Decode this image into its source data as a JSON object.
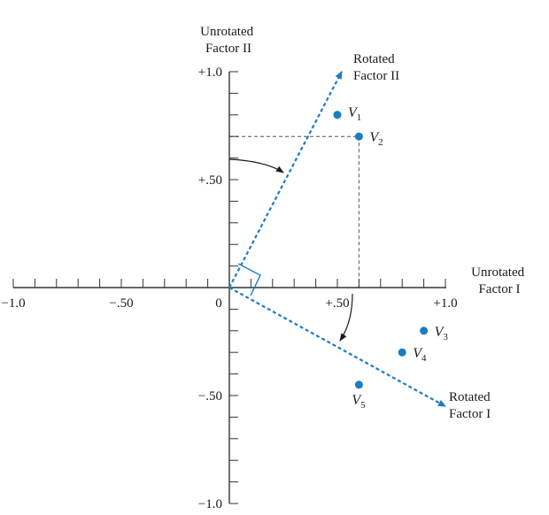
{
  "chart_data": {
    "type": "scatter",
    "xlim": [
      -1.0,
      1.0
    ],
    "ylim": [
      -1.0,
      1.0
    ],
    "x_tick_labels": [
      {
        "value": -1.0,
        "label": "−1.0"
      },
      {
        "value": -0.5,
        "label": "−.50"
      },
      {
        "value": 0,
        "label": "0"
      },
      {
        "value": 0.5,
        "label": "+.50"
      },
      {
        "value": 1.0,
        "label": "+1.0"
      }
    ],
    "y_tick_labels": [
      {
        "value": 1.0,
        "label": "+1.0"
      },
      {
        "value": 0.5,
        "label": "+.50"
      },
      {
        "value": -0.5,
        "label": "−.50"
      },
      {
        "value": -1.0,
        "label": "−1.0"
      }
    ],
    "minor_tick_step": 0.1,
    "unrotated_x_label": [
      "Unrotated",
      "Factor I"
    ],
    "unrotated_y_label": [
      "Unrotated",
      "Factor II"
    ],
    "rotated_factor_I": {
      "label": [
        "Rotated",
        "Factor I"
      ],
      "end": [
        1.0,
        -0.55
      ]
    },
    "rotated_factor_II": {
      "label": [
        "Rotated",
        "Factor II"
      ],
      "end": [
        0.52,
        1.0
      ]
    },
    "points": [
      {
        "letter": "V",
        "sub": "1",
        "x": 0.5,
        "y": 0.8
      },
      {
        "letter": "V",
        "sub": "2",
        "x": 0.6,
        "y": 0.7
      },
      {
        "letter": "V",
        "sub": "3",
        "x": 0.9,
        "y": -0.2
      },
      {
        "letter": "V",
        "sub": "4",
        "x": 0.8,
        "y": -0.3
      },
      {
        "letter": "V",
        "sub": "5",
        "x": 0.6,
        "y": -0.45
      }
    ],
    "projection_point": "V2",
    "colors": {
      "rotated_axes": "#1a7cc4",
      "points": "#1a7cc4",
      "axes": "#333333",
      "guides": "#555555"
    }
  }
}
